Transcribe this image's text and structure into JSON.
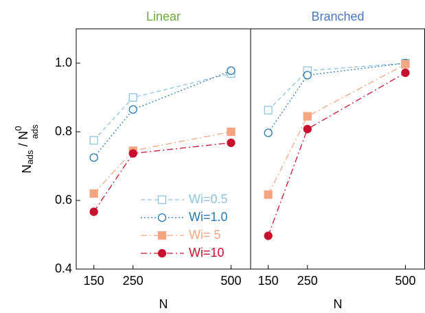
{
  "chart_data": [
    {
      "type": "line",
      "title": "Linear",
      "title_color": "#6aaa3a",
      "xlabel": "N",
      "ylabel": [
        "N",
        "ads",
        " / N",
        "0",
        "ads"
      ],
      "x": [
        150,
        250,
        500
      ],
      "xlim": [
        105,
        550
      ],
      "xticks": [
        150,
        250,
        500
      ],
      "ylim": [
        0.4,
        1.1
      ],
      "yticks": [
        0.4,
        0.6,
        0.8,
        {
          "value": 1.0,
          "label": "1.0"
        }
      ],
      "legend": "lower right",
      "series": [
        {
          "name": "Wi=0.5",
          "color": "#8ec3e0",
          "marker": "open-square",
          "dash": "dashed",
          "values": [
            0.775,
            0.9,
            0.97
          ]
        },
        {
          "name": "Wi=1.0",
          "color": "#2878b0",
          "marker": "open-circle",
          "dash": "dotted",
          "values": [
            0.725,
            0.865,
            0.978
          ]
        },
        {
          "name": "Wi= 5",
          "color": "#f4a582",
          "marker": "filled-square",
          "dash": "dash-dot",
          "values": [
            0.62,
            0.745,
            0.8
          ]
        },
        {
          "name": "Wi=10",
          "color": "#c8102e",
          "marker": "filled-circle",
          "dash": "dash-dot",
          "values": [
            0.567,
            0.737,
            0.768
          ]
        }
      ]
    },
    {
      "type": "line",
      "title": "Branched",
      "title_color": "#4a78c0",
      "xlabel": "N",
      "x": [
        150,
        250,
        500
      ],
      "xlim": [
        105,
        550
      ],
      "xticks": [
        150,
        250,
        500
      ],
      "ylim": [
        0.4,
        1.1
      ],
      "series": [
        {
          "name": "Wi=0.5",
          "color": "#8ec3e0",
          "marker": "open-square",
          "dash": "dashed",
          "values": [
            0.863,
            0.978,
            1.0
          ]
        },
        {
          "name": "Wi=1.0",
          "color": "#2878b0",
          "marker": "open-circle",
          "dash": "dotted",
          "values": [
            0.797,
            0.965,
            1.0
          ]
        },
        {
          "name": "Wi= 5",
          "color": "#f4a582",
          "marker": "filled-square",
          "dash": "dash-dot",
          "values": [
            0.617,
            0.845,
            0.997
          ]
        },
        {
          "name": "Wi=10",
          "color": "#c8102e",
          "marker": "filled-circle",
          "dash": "dash-dot",
          "values": [
            0.497,
            0.808,
            0.972
          ]
        }
      ]
    }
  ]
}
